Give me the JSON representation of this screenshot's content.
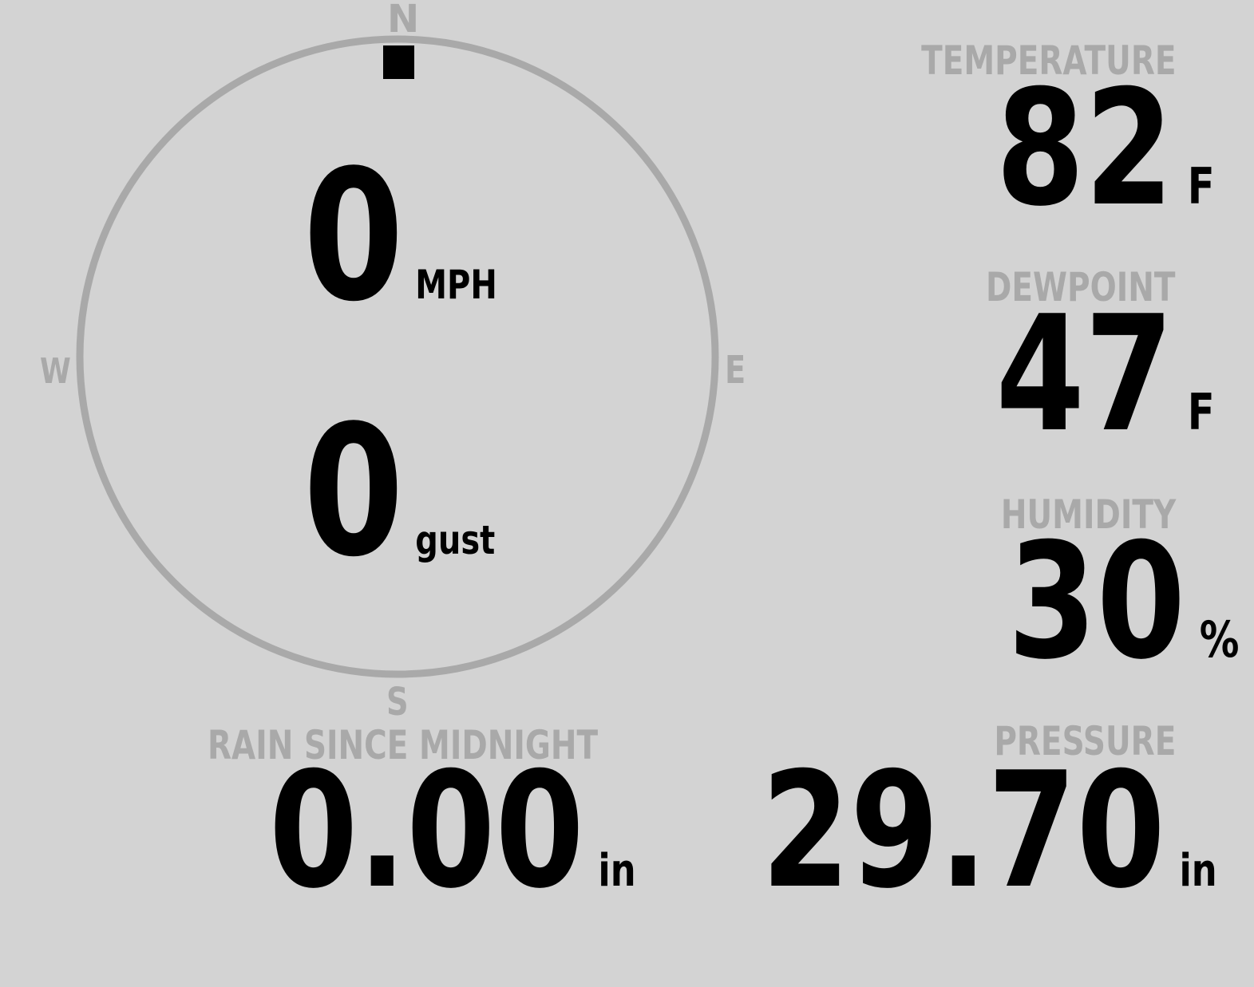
{
  "wind": {
    "speed": "0",
    "speed_unit": "MPH",
    "gust": "0",
    "gust_unit": "gust",
    "direction_degrees": 0,
    "compass": {
      "n": "N",
      "e": "E",
      "s": "S",
      "w": "W"
    }
  },
  "temperature": {
    "label": "TEMPERATURE",
    "value": "82",
    "unit": "F"
  },
  "dewpoint": {
    "label": "DEWPOINT",
    "value": "47",
    "unit": "F"
  },
  "humidity": {
    "label": "HUMIDITY",
    "value": "30",
    "unit": "%"
  },
  "pressure": {
    "label": "PRESSURE",
    "value": "29.70",
    "unit": "in"
  },
  "rain": {
    "label": "RAIN SINCE MIDNIGHT",
    "value": "0.00",
    "unit": "in"
  },
  "colors": {
    "background": "#d3d3d3",
    "muted": "#a9a9a9",
    "text": "#000000"
  }
}
